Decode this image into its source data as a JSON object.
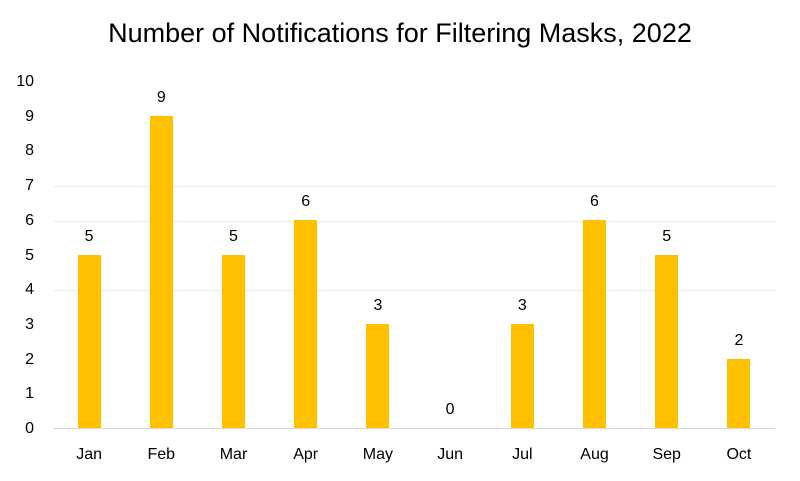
{
  "title": "Number of Notifications for Filtering Masks, 2022",
  "colors": {
    "bar": "#FFC000",
    "axis_line": "#d9d9d9",
    "gridline": "#ececec",
    "text": "#000000",
    "background": "#ffffff"
  },
  "chart_data": {
    "type": "bar",
    "title": "Number of Notifications for Filtering Masks, 2022",
    "categories": [
      "Jan",
      "Feb",
      "Mar",
      "Apr",
      "May",
      "Jun",
      "Jul",
      "Aug",
      "Sep",
      "Oct"
    ],
    "values": [
      5,
      9,
      5,
      6,
      3,
      0,
      3,
      6,
      5,
      2
    ],
    "data_labels": [
      5,
      9,
      5,
      6,
      3,
      0,
      3,
      6,
      5,
      2
    ],
    "xlabel": "",
    "ylabel": "",
    "ylim": [
      0,
      10
    ],
    "yticks": [
      0,
      1,
      2,
      3,
      4,
      5,
      6,
      7,
      8,
      9,
      10
    ],
    "gridline_values": [
      4,
      6,
      7
    ],
    "grid": "partial-horizontal",
    "legend": "none"
  }
}
